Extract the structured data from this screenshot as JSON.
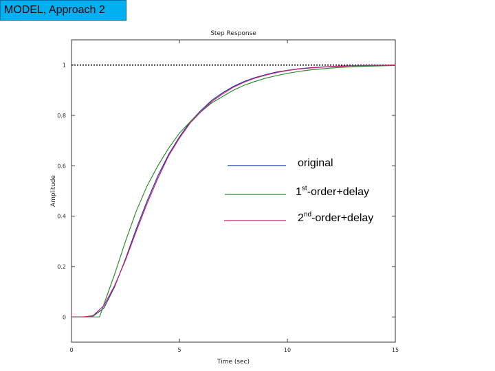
{
  "slide": {
    "title": "MODEL, Approach 2"
  },
  "chart_data": {
    "type": "line",
    "title": "Step Response",
    "xlabel": "Time (sec)",
    "ylabel": "Amplitude",
    "xlim": [
      0,
      15
    ],
    "ylim": [
      -0.1,
      1.1
    ],
    "xticks": [
      0,
      5,
      10,
      15
    ],
    "yticks": [
      0,
      0.2,
      0.4,
      0.6,
      0.8,
      1
    ],
    "ytick_labels": [
      "0",
      "0.2",
      "0.4",
      "0.6",
      "0.8",
      "1"
    ],
    "steady_state": 1,
    "grid": false,
    "legend_position": "center-right",
    "series": [
      {
        "name": "original",
        "color": "#1f3fa8",
        "x": [
          0,
          0.5,
          1.0,
          1.5,
          2.0,
          2.5,
          3.0,
          3.5,
          4.0,
          4.5,
          5.0,
          5.5,
          6.0,
          6.5,
          7.0,
          7.5,
          8.0,
          8.5,
          9.0,
          9.5,
          10.0,
          10.5,
          11.0,
          11.5,
          12.0,
          12.5,
          13.0,
          13.5,
          14.0,
          14.5,
          15.0
        ],
        "y": [
          0,
          0,
          0.003,
          0.035,
          0.12,
          0.23,
          0.35,
          0.46,
          0.56,
          0.645,
          0.715,
          0.775,
          0.82,
          0.86,
          0.89,
          0.915,
          0.935,
          0.95,
          0.962,
          0.972,
          0.979,
          0.985,
          0.989,
          0.992,
          0.994,
          0.996,
          0.997,
          0.998,
          0.999,
          0.999,
          1.0
        ]
      },
      {
        "name": "1st-order+delay",
        "color": "#2e8b2e",
        "x": [
          0,
          0.5,
          1.0,
          1.3,
          1.5,
          2.0,
          2.5,
          3.0,
          3.5,
          4.0,
          4.5,
          5.0,
          5.5,
          6.0,
          6.5,
          7.0,
          7.5,
          8.0,
          8.5,
          9.0,
          9.5,
          10.0,
          10.5,
          11.0,
          11.5,
          12.0,
          12.5,
          13.0,
          13.5,
          14.0,
          14.5,
          15.0
        ],
        "y": [
          0,
          0,
          0,
          0,
          0.05,
          0.17,
          0.3,
          0.42,
          0.52,
          0.6,
          0.67,
          0.73,
          0.775,
          0.815,
          0.85,
          0.875,
          0.9,
          0.92,
          0.935,
          0.948,
          0.958,
          0.967,
          0.974,
          0.98,
          0.984,
          0.988,
          0.991,
          0.993,
          0.995,
          0.996,
          0.997,
          0.998
        ]
      },
      {
        "name": "2nd-order+delay",
        "color": "#c8206e",
        "x": [
          0,
          0.5,
          1.0,
          1.5,
          2.0,
          2.5,
          3.0,
          3.5,
          4.0,
          4.5,
          5.0,
          5.5,
          6.0,
          6.5,
          7.0,
          7.5,
          8.0,
          8.5,
          9.0,
          9.5,
          10.0,
          10.5,
          11.0,
          11.5,
          12.0,
          12.5,
          13.0,
          13.5,
          14.0,
          14.5,
          15.0
        ],
        "y": [
          0,
          0,
          0.005,
          0.045,
          0.125,
          0.225,
          0.34,
          0.45,
          0.55,
          0.64,
          0.71,
          0.77,
          0.815,
          0.855,
          0.885,
          0.912,
          0.932,
          0.948,
          0.96,
          0.97,
          0.978,
          0.984,
          0.988,
          0.991,
          0.994,
          0.995,
          0.997,
          0.998,
          0.998,
          0.999,
          1.0
        ]
      }
    ],
    "legend": [
      {
        "sup_base": "",
        "sup": "",
        "rest": "original",
        "color": "#1f3fa8"
      },
      {
        "sup_base": "1",
        "sup": "st",
        "rest": "-order+delay",
        "color": "#2e8b2e"
      },
      {
        "sup_base": "2",
        "sup": "nd",
        "rest": "-order+delay",
        "color": "#c8206e"
      }
    ]
  }
}
